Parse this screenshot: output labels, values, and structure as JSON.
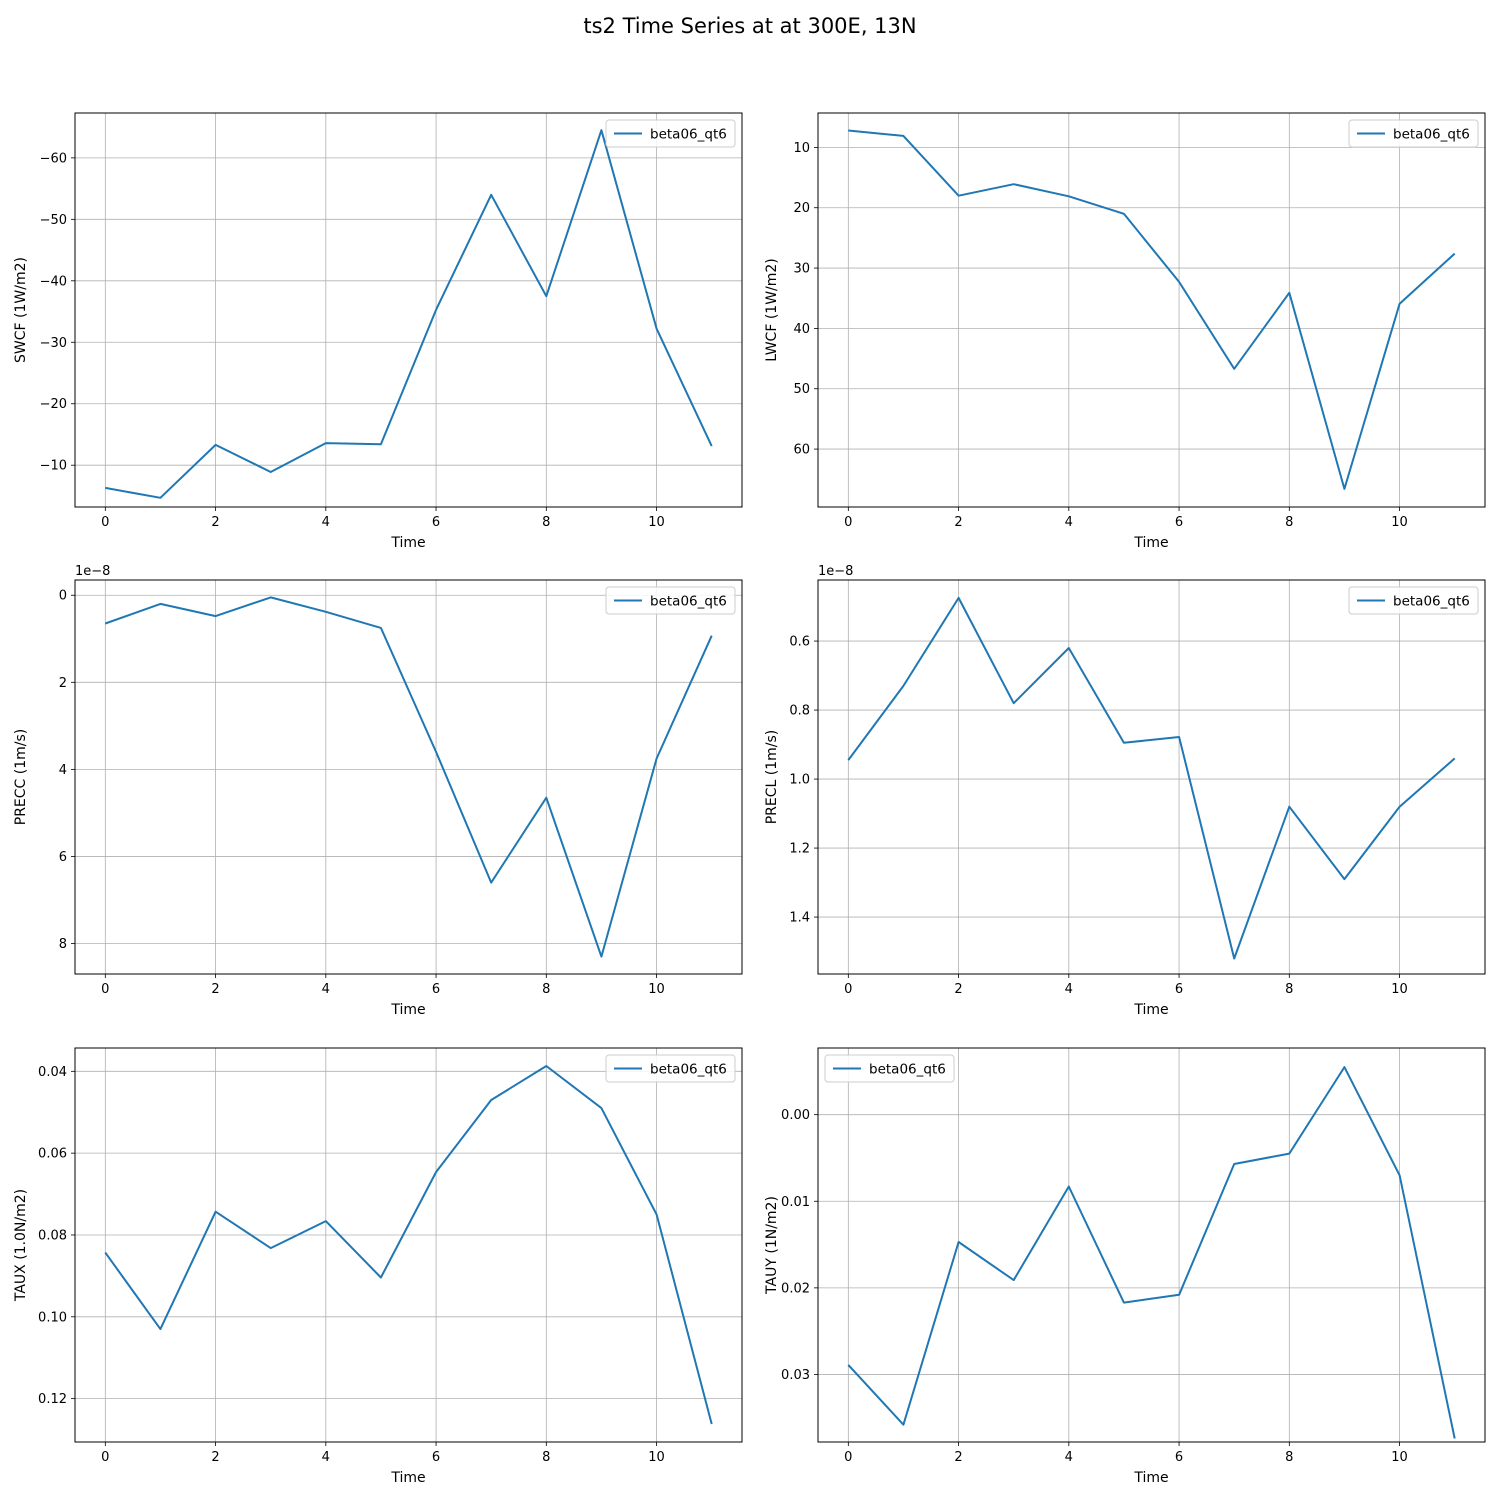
{
  "figure": {
    "title": "ts2 Time Series at at 300E, 13N",
    "line_color": "#1f77b4",
    "grid_color": "#b0b0b0"
  },
  "chart_data": [
    {
      "type": "line",
      "title": "",
      "xlabel": "Time",
      "ylabel": "SWCF (1W/m2)",
      "y_inverted": true,
      "x_ticks": [
        0,
        2,
        4,
        6,
        8,
        10
      ],
      "y_ticks": [
        -60,
        -50,
        -40,
        -30,
        -20,
        -10
      ],
      "y_tick_labels": [
        "−60",
        "−50",
        "−40",
        "−30",
        "−20",
        "−10"
      ],
      "xlim": [
        -0.55,
        11.55
      ],
      "ylim": [
        -3.2,
        -67.3
      ],
      "offset_label": "",
      "legend_loc": "upper right",
      "series": [
        {
          "name": "beta06_qt6",
          "x": [
            0,
            1,
            2,
            3,
            4,
            5,
            6,
            7,
            8,
            9,
            10,
            11
          ],
          "y": [
            -6.3,
            -4.7,
            -13.3,
            -8.9,
            -13.6,
            -13.4,
            -35.3,
            -54.0,
            -37.5,
            -64.5,
            -32.2,
            -13.1
          ]
        }
      ]
    },
    {
      "type": "line",
      "title": "",
      "xlabel": "Time",
      "ylabel": "LWCF (1W/m2)",
      "y_inverted": true,
      "x_ticks": [
        0,
        2,
        4,
        6,
        8,
        10
      ],
      "y_ticks": [
        10,
        20,
        30,
        40,
        50,
        60
      ],
      "y_tick_labels": [
        "10",
        "20",
        "30",
        "40",
        "50",
        "60"
      ],
      "xlim": [
        -0.55,
        11.55
      ],
      "ylim": [
        69.6,
        4.3
      ],
      "offset_label": "",
      "legend_loc": "upper right",
      "series": [
        {
          "name": "beta06_qt6",
          "x": [
            0,
            1,
            2,
            3,
            4,
            5,
            6,
            7,
            8,
            9,
            10,
            11
          ],
          "y": [
            7.2,
            8.1,
            18.0,
            16.1,
            18.1,
            21.0,
            32.3,
            46.7,
            34.1,
            66.6,
            35.9,
            27.6
          ]
        }
      ]
    },
    {
      "type": "line",
      "title": "",
      "xlabel": "Time",
      "ylabel": "PRECC (1m/s)",
      "y_inverted": true,
      "x_ticks": [
        0,
        2,
        4,
        6,
        8,
        10
      ],
      "y_ticks": [
        0,
        2,
        4,
        6,
        8
      ],
      "y_tick_labels": [
        "0",
        "2",
        "4",
        "6",
        "8"
      ],
      "xlim": [
        -0.55,
        11.55
      ],
      "ylim": [
        8.7,
        -0.35
      ],
      "offset_label": "1e−8",
      "legend_loc": "upper right",
      "series": [
        {
          "name": "beta06_qt6",
          "x": [
            0,
            1,
            2,
            3,
            4,
            5,
            6,
            7,
            8,
            9,
            10,
            11
          ],
          "y": [
            0.65,
            0.2,
            0.48,
            0.05,
            0.38,
            0.75,
            3.6,
            6.6,
            4.65,
            8.3,
            3.75,
            0.93
          ]
        }
      ]
    },
    {
      "type": "line",
      "title": "",
      "xlabel": "Time",
      "ylabel": "PRECL (1m/s)",
      "y_inverted": true,
      "x_ticks": [
        0,
        2,
        4,
        6,
        8,
        10
      ],
      "y_ticks": [
        0.6,
        0.8,
        1.0,
        1.2,
        1.4
      ],
      "y_tick_labels": [
        "0.6",
        "0.8",
        "1.0",
        "1.2",
        "1.4"
      ],
      "xlim": [
        -0.55,
        11.55
      ],
      "ylim": [
        1.565,
        0.423
      ],
      "offset_label": "1e−8",
      "legend_loc": "upper right",
      "series": [
        {
          "name": "beta06_qt6",
          "x": [
            0,
            1,
            2,
            3,
            4,
            5,
            6,
            7,
            8,
            9,
            10,
            11
          ],
          "y": [
            0.945,
            0.73,
            0.475,
            0.78,
            0.62,
            0.895,
            0.878,
            1.52,
            1.08,
            1.29,
            1.08,
            0.94
          ]
        }
      ]
    },
    {
      "type": "line",
      "title": "",
      "xlabel": "Time",
      "ylabel": "TAUX (1.0N/m2)",
      "y_inverted": true,
      "x_ticks": [
        0,
        2,
        4,
        6,
        8,
        10
      ],
      "y_ticks": [
        0.04,
        0.06,
        0.08,
        0.1,
        0.12
      ],
      "y_tick_labels": [
        "0.04",
        "0.06",
        "0.08",
        "0.10",
        "0.12"
      ],
      "xlim": [
        -0.55,
        11.55
      ],
      "ylim": [
        0.1306,
        0.0343
      ],
      "offset_label": "",
      "legend_loc": "upper right",
      "series": [
        {
          "name": "beta06_qt6",
          "x": [
            0,
            1,
            2,
            3,
            4,
            5,
            6,
            7,
            8,
            9,
            10,
            11
          ],
          "y": [
            0.0843,
            0.103,
            0.0743,
            0.0832,
            0.0766,
            0.0904,
            0.0646,
            0.047,
            0.0387,
            0.049,
            0.075,
            0.1262
          ]
        }
      ]
    },
    {
      "type": "line",
      "title": "",
      "xlabel": "Time",
      "ylabel": "TAUY (1N/m2)",
      "y_inverted": true,
      "x_ticks": [
        0,
        2,
        4,
        6,
        8,
        10
      ],
      "y_ticks": [
        0.0,
        0.01,
        0.02,
        0.03
      ],
      "y_tick_labels": [
        "0.00",
        "0.01",
        "0.02",
        "0.03"
      ],
      "xlim": [
        -0.55,
        11.55
      ],
      "ylim": [
        0.0378,
        -0.0077
      ],
      "offset_label": "",
      "legend_loc": "upper left",
      "series": [
        {
          "name": "beta06_qt6",
          "x": [
            0,
            1,
            2,
            3,
            4,
            5,
            6,
            7,
            8,
            9,
            10,
            11
          ],
          "y": [
            0.0289,
            0.0358,
            0.0147,
            0.0191,
            0.0083,
            0.0217,
            0.0208,
            0.0057,
            0.0045,
            -0.0055,
            0.007,
            0.0374
          ]
        }
      ]
    }
  ]
}
